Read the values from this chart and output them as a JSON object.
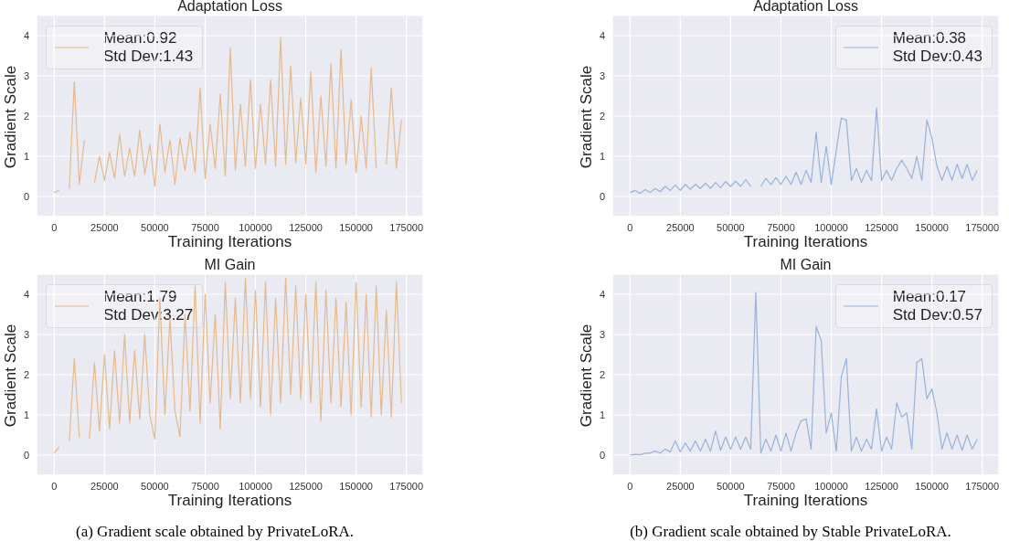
{
  "chart_data": [
    {
      "type": "line",
      "title": "Adaptation Loss",
      "xlabel": "Training Iterations",
      "ylabel": "Gradient Scale",
      "xlim": [
        -8750,
        183300
      ],
      "ylim": [
        -0.5,
        4.5
      ],
      "xticks": [
        0,
        25000,
        50000,
        75000,
        100000,
        125000,
        150000,
        175000
      ],
      "yticks": [
        0,
        1,
        2,
        3,
        4
      ],
      "grid": true,
      "legend": "top left",
      "x": [
        0,
        2500,
        5000,
        7500,
        10000,
        12500,
        15000,
        17500,
        20000,
        22500,
        25000,
        27500,
        30000,
        32500,
        35000,
        37500,
        40000,
        42500,
        45000,
        47500,
        50000,
        52500,
        55000,
        57500,
        60000,
        62500,
        65000,
        67500,
        70000,
        72500,
        75000,
        77500,
        80000,
        82500,
        85000,
        87500,
        90000,
        92500,
        95000,
        97500,
        100000,
        102500,
        105000,
        107500,
        110000,
        112500,
        115000,
        117500,
        120000,
        122500,
        125000,
        127500,
        130000,
        132500,
        135000,
        137500,
        140000,
        142500,
        145000,
        147500,
        150000,
        152500,
        155000,
        157500,
        160000,
        162500,
        165000,
        167500,
        170000,
        172500
      ],
      "series": [
        {
          "name": "Mean:0.92\nStd Dev:1.43",
          "color": "#e5b98c",
          "values": [
            0.1,
            0.15,
            null,
            0.2,
            2.85,
            0.3,
            1.4,
            null,
            0.35,
            1.0,
            0.4,
            1.1,
            0.45,
            1.55,
            0.5,
            1.2,
            0.5,
            1.65,
            0.55,
            1.3,
            0.25,
            1.8,
            0.6,
            1.4,
            0.3,
            1.45,
            0.65,
            1.6,
            0.6,
            2.7,
            0.45,
            1.8,
            0.7,
            2.55,
            0.5,
            3.7,
            0.65,
            2.3,
            0.75,
            2.9,
            0.7,
            2.3,
            0.8,
            2.9,
            0.75,
            3.95,
            0.8,
            3.25,
            0.85,
            2.45,
            0.8,
            3.1,
            0.6,
            2.5,
            0.75,
            3.3,
            0.7,
            3.65,
            0.8,
            2.4,
            0.6,
            2.0,
            0.7,
            3.2,
            0.7,
            null,
            0.8,
            2.7,
            0.7,
            1.9
          ]
        }
      ]
    },
    {
      "type": "line",
      "title": "Adaptation Loss",
      "xlabel": "Training Iterations",
      "ylabel": "Gradient Scale",
      "xlim": [
        -8750,
        183300
      ],
      "ylim": [
        -0.5,
        4.5
      ],
      "xticks": [
        0,
        25000,
        50000,
        75000,
        100000,
        125000,
        150000,
        175000
      ],
      "yticks": [
        0,
        1,
        2,
        3,
        4
      ],
      "grid": true,
      "legend": "top right",
      "x": [
        0,
        2500,
        5000,
        7500,
        10000,
        12500,
        15000,
        17500,
        20000,
        22500,
        25000,
        27500,
        30000,
        32500,
        35000,
        37500,
        40000,
        42500,
        45000,
        47500,
        50000,
        52500,
        55000,
        57500,
        60000,
        62500,
        65000,
        67500,
        70000,
        72500,
        75000,
        77500,
        80000,
        82500,
        85000,
        87500,
        90000,
        92500,
        95000,
        97500,
        100000,
        102500,
        105000,
        107500,
        110000,
        112500,
        115000,
        117500,
        120000,
        122500,
        125000,
        127500,
        130000,
        132500,
        135000,
        137500,
        140000,
        142500,
        145000,
        147500,
        150000,
        152500,
        155000,
        157500,
        160000,
        162500,
        165000,
        167500,
        170000,
        172500
      ],
      "series": [
        {
          "name": "Mean:0.38\nStd Dev:0.43",
          "color": "#97b3dc",
          "values": [
            0.1,
            0.15,
            0.08,
            0.17,
            0.1,
            0.2,
            0.12,
            0.25,
            0.15,
            0.28,
            0.15,
            0.3,
            0.18,
            0.3,
            0.2,
            0.33,
            0.2,
            0.35,
            0.22,
            0.37,
            0.25,
            0.38,
            0.25,
            0.42,
            0.25,
            null,
            0.25,
            0.45,
            0.3,
            0.47,
            0.3,
            0.5,
            0.3,
            0.6,
            0.3,
            0.65,
            0.35,
            1.6,
            0.35,
            1.25,
            0.3,
            1.15,
            1.95,
            1.9,
            0.4,
            0.7,
            0.35,
            0.65,
            0.4,
            2.2,
            0.4,
            0.65,
            0.4,
            0.7,
            0.9,
            0.7,
            0.45,
            1.0,
            0.4,
            1.9,
            1.45,
            0.75,
            0.4,
            0.75,
            0.4,
            0.8,
            0.45,
            0.8,
            0.4,
            0.65
          ]
        }
      ]
    },
    {
      "type": "line",
      "title": "MI Gain",
      "xlabel": "Training Iterations",
      "ylabel": "Gradient Scale",
      "xlim": [
        -8750,
        183300
      ],
      "ylim": [
        -0.5,
        4.5
      ],
      "xticks": [
        0,
        25000,
        50000,
        75000,
        100000,
        125000,
        150000,
        175000
      ],
      "yticks": [
        0,
        1,
        2,
        3,
        4
      ],
      "grid": true,
      "legend": "top left",
      "annotations": [
        "(a) Gradient scale obtained by PrivateLoRA."
      ],
      "x": [
        0,
        2500,
        5000,
        7500,
        10000,
        12500,
        15000,
        17500,
        20000,
        22500,
        25000,
        27500,
        30000,
        32500,
        35000,
        37500,
        40000,
        42500,
        45000,
        47500,
        50000,
        52500,
        55000,
        57500,
        60000,
        62500,
        65000,
        67500,
        70000,
        72500,
        75000,
        77500,
        80000,
        82500,
        85000,
        87500,
        90000,
        92500,
        95000,
        97500,
        100000,
        102500,
        105000,
        107500,
        110000,
        112500,
        115000,
        117500,
        120000,
        122500,
        125000,
        127500,
        130000,
        132500,
        135000,
        137500,
        140000,
        142500,
        145000,
        147500,
        150000,
        152500,
        155000,
        157500,
        160000,
        162500,
        165000,
        167500,
        170000,
        172500
      ],
      "series": [
        {
          "name": "Mean:1.79\nStd Dev:3.27",
          "color": "#e5b98c",
          "values": [
            0.05,
            0.2,
            null,
            0.35,
            2.4,
            0.45,
            null,
            0.4,
            2.3,
            0.6,
            2.5,
            0.65,
            2.6,
            0.8,
            3.0,
            0.8,
            2.6,
            0.9,
            3.0,
            1.0,
            0.4,
            3.9,
            1.0,
            3.4,
            1.1,
            0.45,
            3.5,
            1.1,
            4.2,
            0.8,
            4.0,
            1.3,
            3.5,
            0.65,
            4.3,
            1.4,
            3.9,
            1.3,
            4.4,
            1.4,
            4.1,
            1.2,
            4.3,
            1.0,
            3.9,
            1.3,
            4.4,
            1.5,
            4.2,
            1.4,
            4.0,
            1.3,
            4.3,
            0.85,
            4.1,
            1.3,
            3.9,
            1.2,
            3.8,
            1.0,
            4.3,
            1.2,
            4.0,
            0.95,
            4.2,
            1.0,
            3.6,
            0.95,
            4.3,
            1.3
          ]
        }
      ]
    },
    {
      "type": "line",
      "title": "MI Gain",
      "xlabel": "Training Iterations",
      "ylabel": "Gradient Scale",
      "xlim": [
        -8750,
        183300
      ],
      "ylim": [
        -0.5,
        4.5
      ],
      "xticks": [
        0,
        25000,
        50000,
        75000,
        100000,
        125000,
        150000,
        175000
      ],
      "yticks": [
        0,
        1,
        2,
        3,
        4
      ],
      "grid": true,
      "legend": "top right",
      "annotations": [
        "(b) Gradient scale obtained by Stable PrivateLoRA."
      ],
      "x": [
        0,
        2500,
        5000,
        7500,
        10000,
        12500,
        15000,
        17500,
        20000,
        22500,
        25000,
        27500,
        30000,
        32500,
        35000,
        37500,
        40000,
        42500,
        45000,
        47500,
        50000,
        52500,
        55000,
        57500,
        60000,
        62500,
        65000,
        67500,
        70000,
        72500,
        75000,
        77500,
        80000,
        82500,
        85000,
        87500,
        90000,
        92500,
        95000,
        97500,
        100000,
        102500,
        105000,
        107500,
        110000,
        112500,
        115000,
        117500,
        120000,
        122500,
        125000,
        127500,
        130000,
        132500,
        135000,
        137500,
        140000,
        142500,
        145000,
        147500,
        150000,
        152500,
        155000,
        157500,
        160000,
        162500,
        165000,
        167500,
        170000,
        172500
      ],
      "series": [
        {
          "name": "Mean:0.17\nStd Dev:0.57",
          "color": "#97b3dc",
          "values": [
            0.0,
            0.02,
            0.01,
            0.05,
            0.05,
            0.1,
            0.05,
            0.15,
            0.08,
            0.35,
            0.08,
            0.3,
            0.1,
            0.35,
            0.1,
            0.4,
            0.1,
            0.6,
            0.12,
            0.45,
            0.15,
            0.45,
            0.15,
            0.45,
            0.15,
            4.05,
            0.05,
            0.4,
            0.1,
            0.5,
            0.1,
            0.55,
            0.1,
            0.55,
            0.85,
            0.9,
            0.15,
            3.2,
            2.85,
            0.55,
            1.05,
            0.1,
            1.95,
            2.4,
            0.1,
            0.45,
            0.1,
            0.4,
            0.15,
            1.15,
            0.1,
            0.45,
            0.15,
            1.3,
            0.95,
            1.05,
            0.15,
            2.3,
            2.4,
            1.4,
            1.65,
            1.05,
            0.15,
            0.55,
            0.15,
            0.5,
            0.12,
            0.5,
            0.15,
            0.4
          ]
        }
      ]
    }
  ]
}
